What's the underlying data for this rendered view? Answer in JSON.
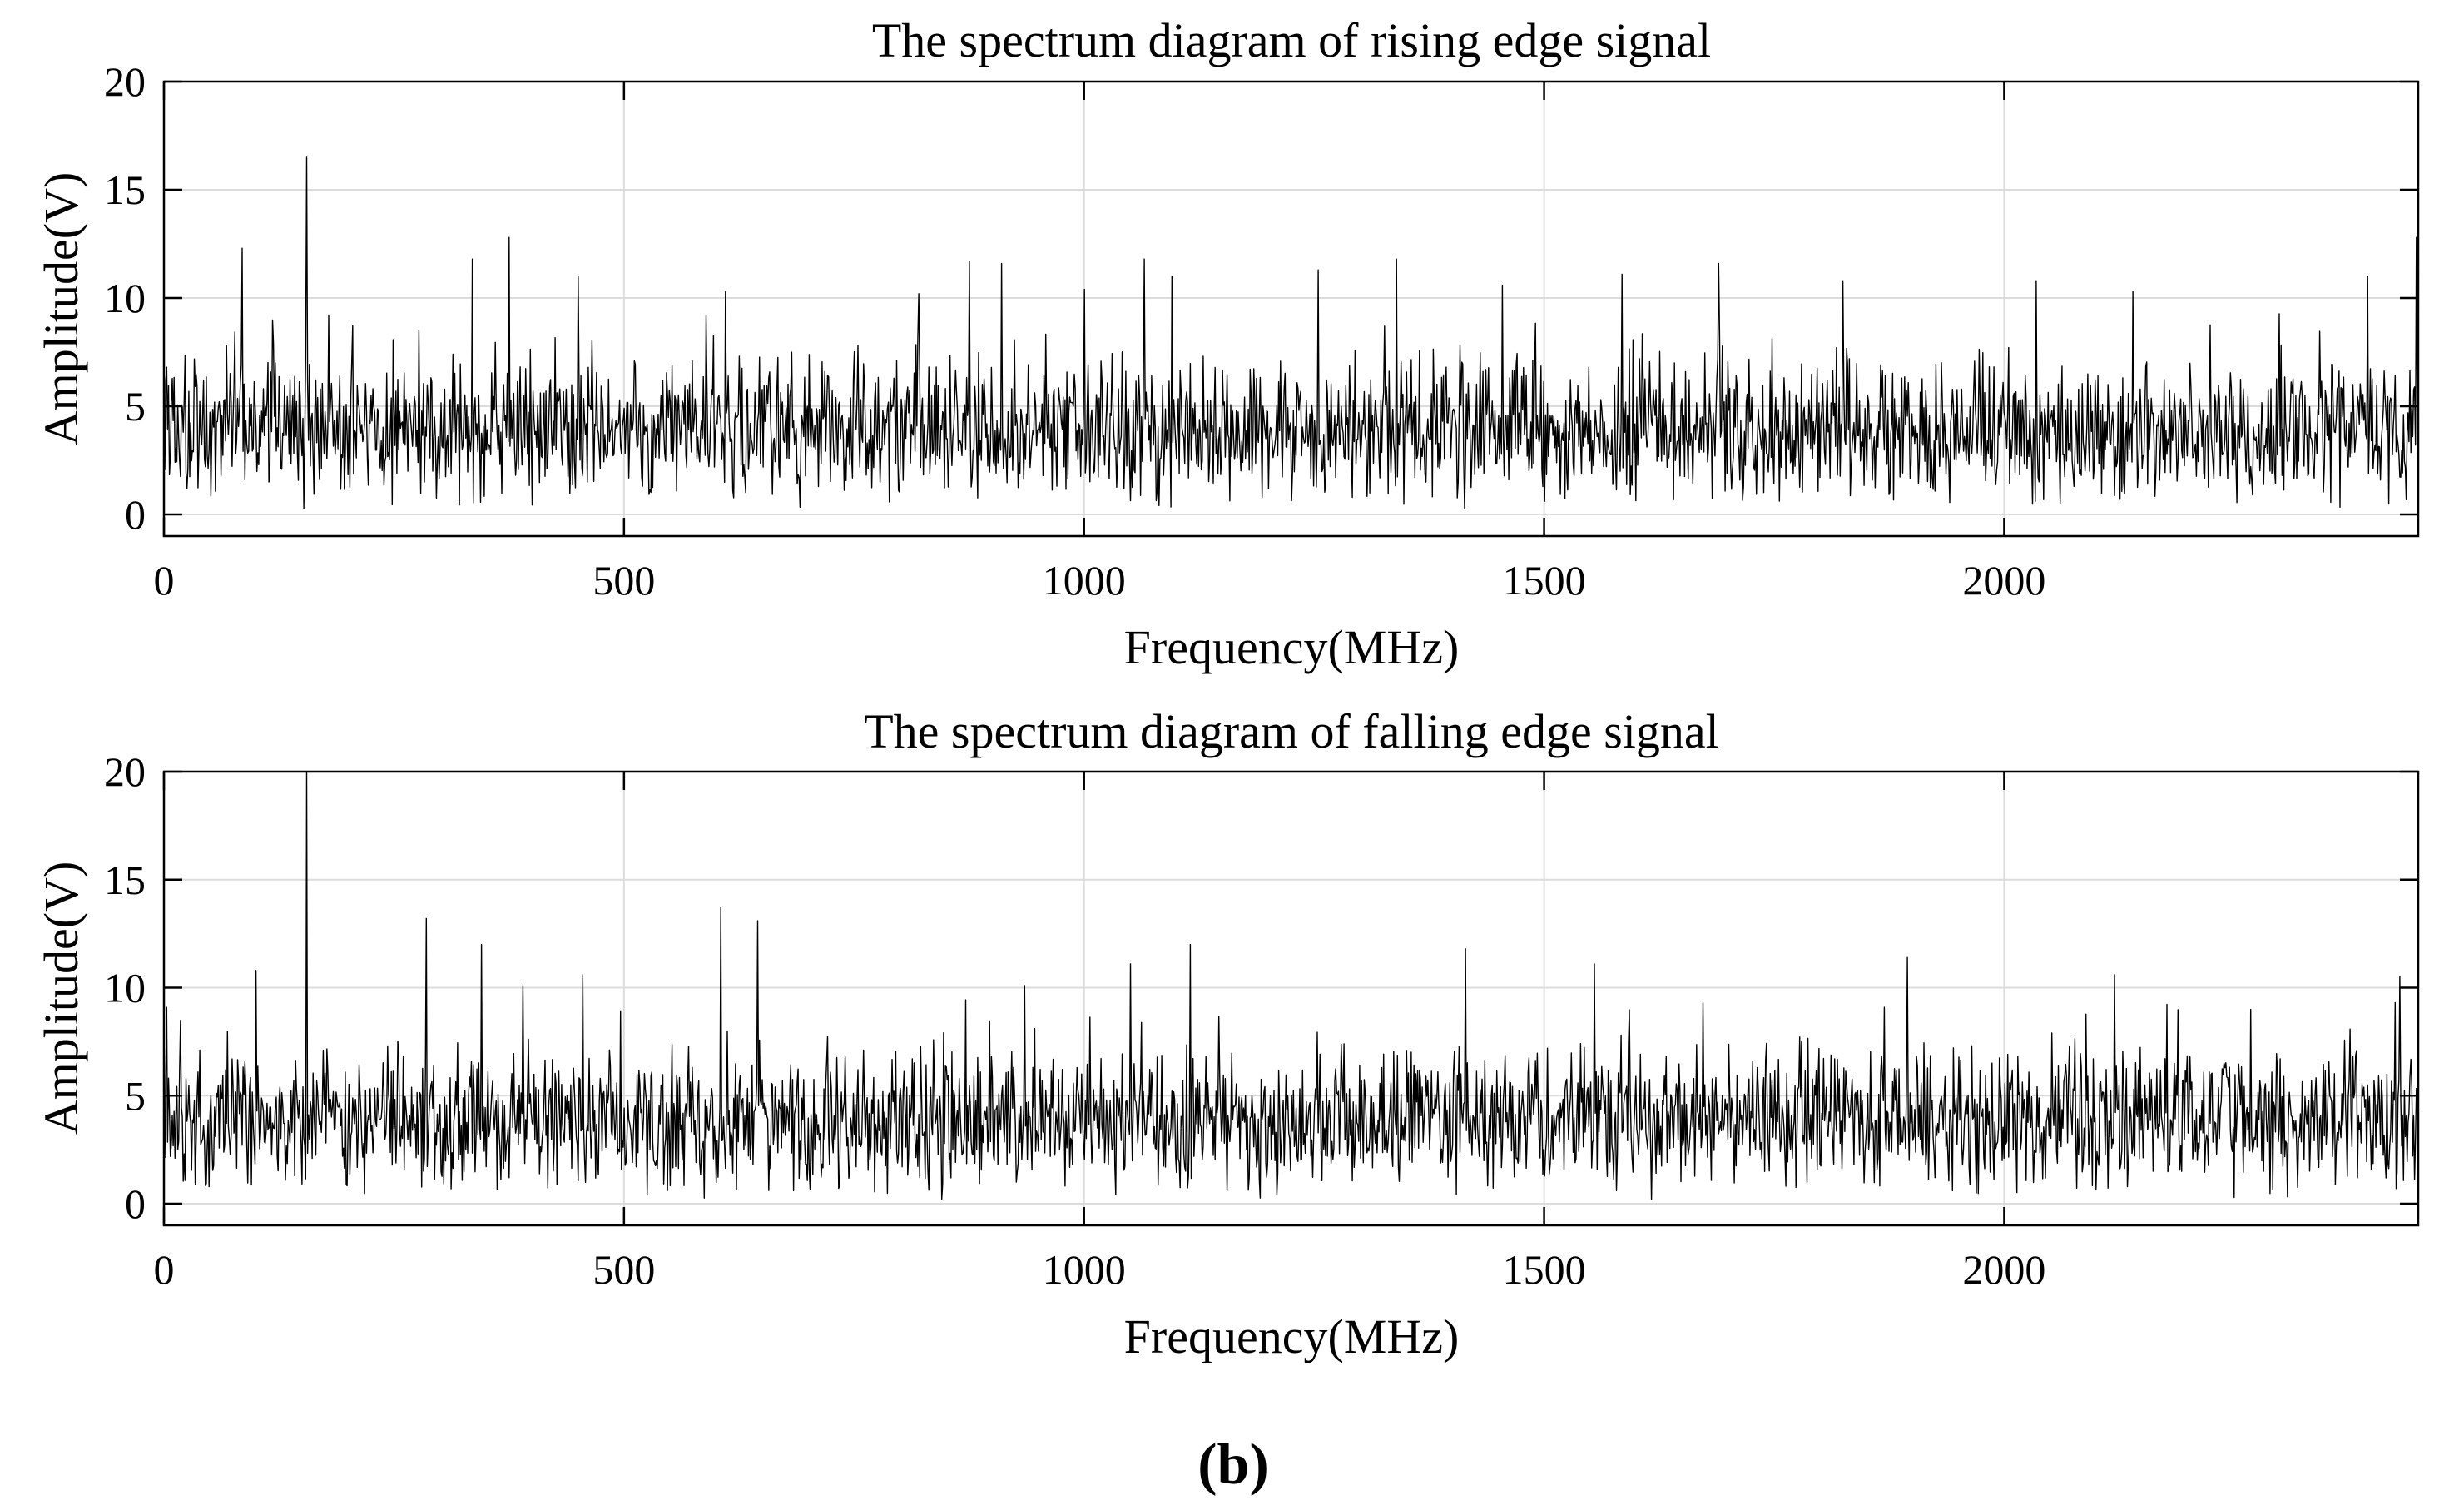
{
  "caption": "(b)",
  "chart_data": [
    {
      "type": "line",
      "title": "The spectrum diagram of rising edge signal",
      "xlabel": "Frequency(MHz)",
      "ylabel": "Amplitude(V)",
      "xlim": [
        0,
        2450
      ],
      "ylim": [
        -1,
        20
      ],
      "xticks": [
        0,
        500,
        1000,
        1500,
        2000
      ],
      "yticks": [
        0,
        5,
        10,
        15,
        20
      ],
      "xtick_labels": [
        "0",
        "500",
        "1000",
        "1500",
        "2000"
      ],
      "ytick_labels": [
        "0",
        "5",
        "10",
        "15",
        "20"
      ],
      "grid": true,
      "noise": {
        "baseline_mean": 3.8,
        "baseline_spread": 1.6,
        "min": 0.2,
        "typical_max": 9.5,
        "points": 2450
      },
      "peaks": [
        {
          "x": 85,
          "y": 12.3
        },
        {
          "x": 155,
          "y": 16.5
        },
        {
          "x": 335,
          "y": 11.8
        },
        {
          "x": 375,
          "y": 12.8
        },
        {
          "x": 450,
          "y": 11.0
        },
        {
          "x": 610,
          "y": 10.3
        },
        {
          "x": 820,
          "y": 10.2
        },
        {
          "x": 875,
          "y": 11.7
        },
        {
          "x": 910,
          "y": 11.6
        },
        {
          "x": 1000,
          "y": 10.4
        },
        {
          "x": 1065,
          "y": 11.8
        },
        {
          "x": 1095,
          "y": 11.0
        },
        {
          "x": 1255,
          "y": 11.3
        },
        {
          "x": 1340,
          "y": 11.8
        },
        {
          "x": 1455,
          "y": 10.6
        },
        {
          "x": 1585,
          "y": 11.1
        },
        {
          "x": 1690,
          "y": 11.6
        },
        {
          "x": 1825,
          "y": 10.8
        },
        {
          "x": 2035,
          "y": 10.8
        },
        {
          "x": 2140,
          "y": 10.3
        },
        {
          "x": 2395,
          "y": 11.0
        },
        {
          "x": 2448,
          "y": 12.8
        }
      ]
    },
    {
      "type": "line",
      "title": "The spectrum diagram of falling edge signal",
      "xlabel": "Frequency(MHz)",
      "ylabel": "Amplitude(V)",
      "xlim": [
        0,
        2450
      ],
      "ylim": [
        -1,
        20
      ],
      "xticks": [
        0,
        500,
        1000,
        1500,
        2000
      ],
      "yticks": [
        0,
        5,
        10,
        15,
        20
      ],
      "xtick_labels": [
        "0",
        "500",
        "1000",
        "1500",
        "2000"
      ],
      "ytick_labels": [
        "0",
        "5",
        "10",
        "15",
        "20"
      ],
      "grid": true,
      "noise": {
        "baseline_mean": 3.8,
        "baseline_spread": 1.6,
        "min": 0.2,
        "typical_max": 9.5,
        "points": 2450
      },
      "peaks": [
        {
          "x": 100,
          "y": 10.8
        },
        {
          "x": 155,
          "y": 20.0
        },
        {
          "x": 285,
          "y": 13.2
        },
        {
          "x": 345,
          "y": 12.0
        },
        {
          "x": 390,
          "y": 10.1
        },
        {
          "x": 455,
          "y": 10.6
        },
        {
          "x": 605,
          "y": 13.7
        },
        {
          "x": 645,
          "y": 13.1
        },
        {
          "x": 935,
          "y": 10.1
        },
        {
          "x": 1050,
          "y": 11.1
        },
        {
          "x": 1115,
          "y": 12.0
        },
        {
          "x": 1415,
          "y": 11.8
        },
        {
          "x": 1555,
          "y": 11.1
        },
        {
          "x": 1895,
          "y": 11.4
        },
        {
          "x": 2120,
          "y": 10.6
        },
        {
          "x": 2430,
          "y": 10.5
        }
      ]
    }
  ]
}
